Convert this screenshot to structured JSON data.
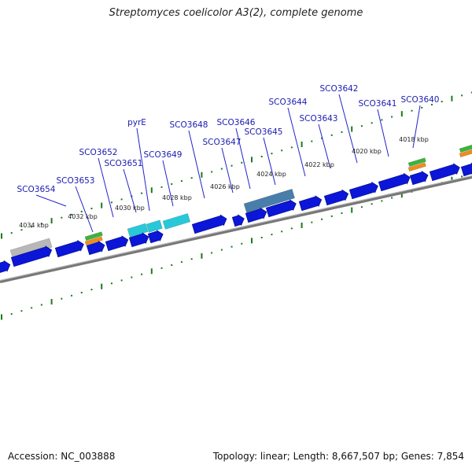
{
  "title": "Streptomyces coelicolor A3(2), complete genome",
  "footer": {
    "accession": "Accession: NC_003888",
    "summary": "Topology: linear; Length: 8,667,507 bp; Genes: 7,854"
  },
  "colors": {
    "gene": "#0b16d8",
    "gene_edge": "#000a7a",
    "label": "#1b1bb0",
    "leader": "#2323cc",
    "tick": "#1a7a1a",
    "backbone": "#777777",
    "teal_feature": "#28c8d8",
    "steel_feature": "#4a7eaa",
    "grey_feature": "#b8b8b8",
    "green_feature": "#3cb43c",
    "orange_feature": "#f08c1e"
  },
  "icons": {
    "gene": "gene-arrow-icon",
    "region": "region-bar-icon"
  },
  "kbp_marks": [
    {
      "label": "4034 kbp",
      "bp": 4034000
    },
    {
      "label": "4032 kbp",
      "bp": 4032000
    },
    {
      "label": "4030 kbp",
      "bp": 4030000
    },
    {
      "label": "4028 kbp",
      "bp": 4028000
    },
    {
      "label": "4026 kbp",
      "bp": 4026000
    },
    {
      "label": "4024 kbp",
      "bp": 4024000
    },
    {
      "label": "4022 kbp",
      "bp": 4022000
    },
    {
      "label": "4020 kbp",
      "bp": 4020000
    },
    {
      "label": "4018 kbp",
      "bp": 4018000
    }
  ],
  "gene_labels": [
    {
      "name": "SCO3654"
    },
    {
      "name": "SCO3653"
    },
    {
      "name": "SCO3652"
    },
    {
      "name": "SCO3651"
    },
    {
      "name": "pyrE"
    },
    {
      "name": "SCO3649"
    },
    {
      "name": "SCO3648"
    },
    {
      "name": "SCO3647"
    },
    {
      "name": "SCO3646"
    },
    {
      "name": "SCO3645"
    },
    {
      "name": "SCO3644"
    },
    {
      "name": "SCO3643"
    },
    {
      "name": "SCO3642"
    },
    {
      "name": "SCO3641"
    },
    {
      "name": "SCO3640"
    }
  ]
}
